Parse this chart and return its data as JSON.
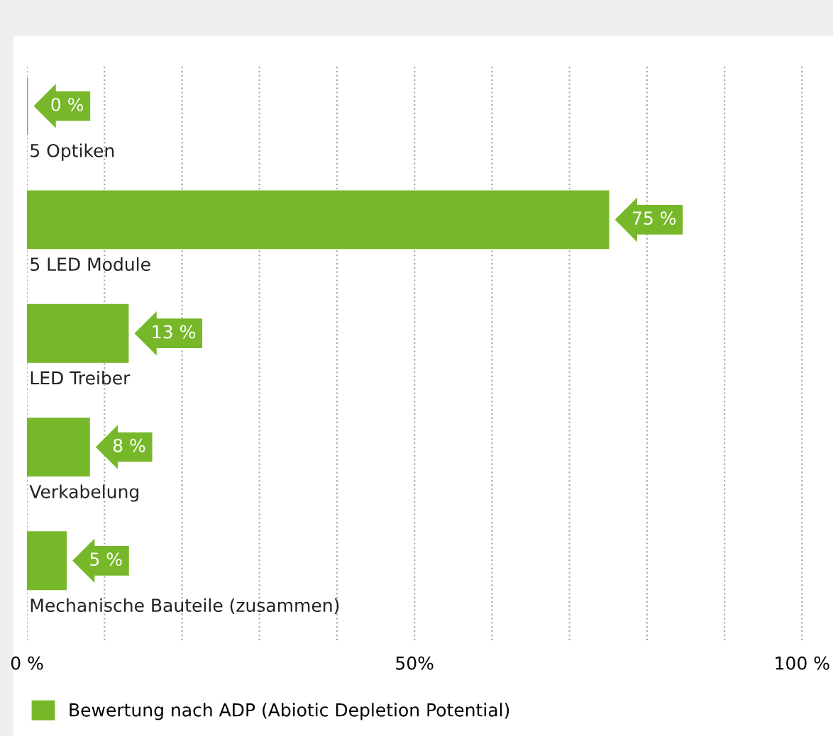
{
  "chart_data": {
    "type": "bar",
    "orientation": "horizontal",
    "categories": [
      "5 Optiken",
      "5 LED Module",
      "LED Treiber",
      "Verkabelung",
      "Mechanische Bauteile (zusammen)"
    ],
    "series": [
      {
        "name": "Bewertung nach ADP (Abiotic Depletion Potential)",
        "color": "#77b82a",
        "values": [
          0,
          75,
          13,
          8,
          5
        ],
        "value_labels": [
          "0 %",
          "75 %",
          "13 %",
          "8 %",
          "5 %"
        ]
      }
    ],
    "xlim": [
      0,
      104
    ],
    "xticks": [
      {
        "value": 0,
        "label": "0 %"
      },
      {
        "value": 10,
        "label": null
      },
      {
        "value": 20,
        "label": null
      },
      {
        "value": 30,
        "label": null
      },
      {
        "value": 40,
        "label": null
      },
      {
        "value": 50,
        "label": "50%"
      },
      {
        "value": 60,
        "label": null
      },
      {
        "value": 70,
        "label": null
      },
      {
        "value": 80,
        "label": null
      },
      {
        "value": 90,
        "label": null
      },
      {
        "value": 100,
        "label": "100 %"
      }
    ],
    "grid": "x",
    "legend": "bottom left"
  }
}
